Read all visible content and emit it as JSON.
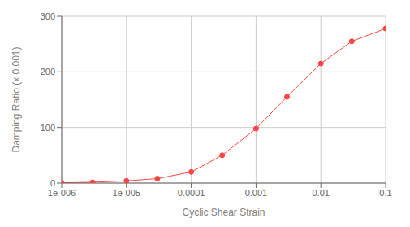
{
  "chart_data": {
    "type": "line",
    "xlabel": "Cyclic Shear Strain",
    "ylabel": "Damping Ratio (x 0.001)",
    "x": [
      1e-06,
      3e-06,
      1e-05,
      3e-05,
      0.0001,
      0.0003,
      0.001,
      0.003,
      0.01,
      0.03,
      0.1
    ],
    "values": [
      0.5,
      1.5,
      4,
      8,
      20,
      50,
      98,
      155,
      215,
      255,
      278
    ],
    "color": "#ff4444",
    "marker": "circle",
    "log": "x",
    "grid": true,
    "xlim": [
      1e-06,
      0.1
    ],
    "ylim": [
      0,
      300
    ],
    "xticks": [
      {
        "value": 1e-06,
        "label": "1e-006"
      },
      {
        "value": 1e-05,
        "label": "1e-005"
      },
      0.0001,
      0.001,
      0.01,
      0.1
    ],
    "yticks": [
      0,
      100,
      200,
      300
    ]
  }
}
